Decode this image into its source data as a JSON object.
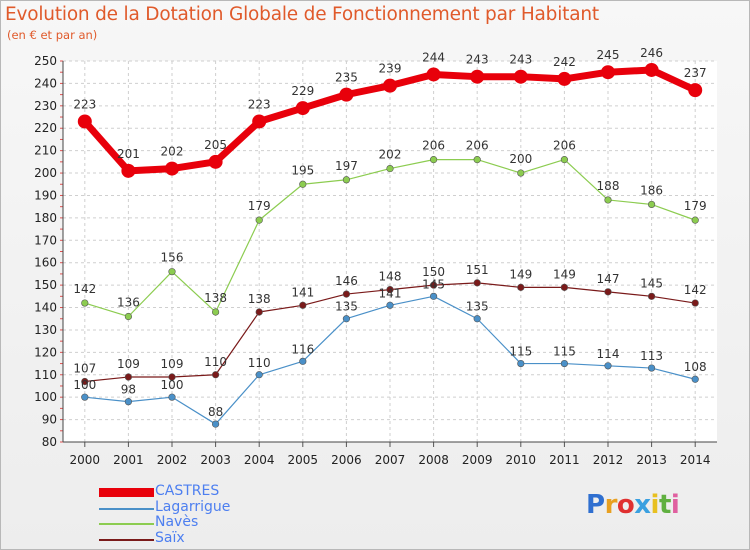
{
  "chart": {
    "title": "Evolution de la Dotation Globale de Fonctionnement par Habitant",
    "subtitle": "(en € et par an)",
    "logo": "Proxiti"
  },
  "chart_data": {
    "type": "line",
    "title": "Evolution de la Dotation Globale de Fonctionnement par Habitant",
    "subtitle": "(en € et par an)",
    "x": [
      2000,
      2001,
      2002,
      2003,
      2004,
      2005,
      2006,
      2007,
      2008,
      2009,
      2010,
      2011,
      2012,
      2013,
      2014
    ],
    "ylim": [
      80,
      250
    ],
    "yticks": [
      80,
      90,
      100,
      110,
      120,
      130,
      140,
      150,
      160,
      170,
      180,
      190,
      200,
      210,
      220,
      230,
      240,
      250
    ],
    "grid": true,
    "legend_position": "bottom-left",
    "series": [
      {
        "name": "CASTRES",
        "color": "#e8000b",
        "values": [
          223,
          201,
          202,
          205,
          223,
          229,
          235,
          239,
          244,
          243,
          243,
          242,
          245,
          246,
          237
        ]
      },
      {
        "name": "Lagarrigue",
        "color": "#4a90c8",
        "values": [
          100,
          98,
          100,
          88,
          110,
          116,
          135,
          141,
          145,
          135,
          115,
          115,
          114,
          113,
          108
        ]
      },
      {
        "name": "Navès",
        "color": "#8ccc50",
        "values": [
          142,
          136,
          156,
          138,
          179,
          195,
          197,
          202,
          206,
          206,
          200,
          206,
          188,
          186,
          179
        ]
      },
      {
        "name": "Saïx",
        "color": "#7a1a1a",
        "values": [
          107,
          109,
          109,
          110,
          138,
          141,
          146,
          148,
          150,
          151,
          149,
          149,
          147,
          145,
          142
        ]
      }
    ]
  }
}
